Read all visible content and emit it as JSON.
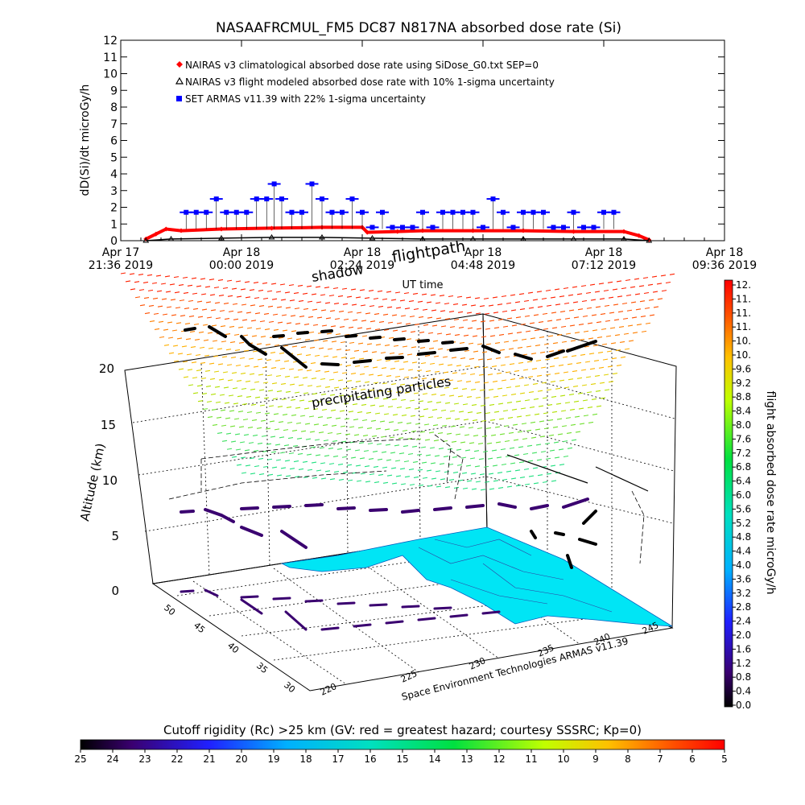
{
  "chart_data": [
    {
      "type": "scatter",
      "title": "NASAAFRCMUL_FM5 DC87 N817NA absorbed dose rate (Si)",
      "xlabel": "UT time",
      "ylabel": "dD(Si)/dt microGy/h",
      "ylim": [
        0,
        12
      ],
      "yticks": [
        "0",
        "1",
        "2",
        "3",
        "4",
        "5",
        "6",
        "7",
        "8",
        "9",
        "10",
        "11",
        "12"
      ],
      "xlim_hours_from_start": [
        0,
        12
      ],
      "xticks": [
        {
          "l1": "Apr 17",
          "l2": "21:36 2019"
        },
        {
          "l1": "Apr 18",
          "l2": "00:00 2019"
        },
        {
          "l1": "Apr 18",
          "l2": "02:24 2019"
        },
        {
          "l1": "Apr 18",
          "l2": "04:48 2019"
        },
        {
          "l1": "Apr 18",
          "l2": "07:12 2019"
        },
        {
          "l1": "Apr 18",
          "l2": "09:36 2019"
        }
      ],
      "legend_position": "top-left",
      "series": [
        {
          "name": "NAIRAS v3 climatological absorbed dose rate using SiDose_G0.txt SEP=0",
          "color": "#ff0000",
          "marker": "diamond",
          "x": [
            0.5,
            0.7,
            0.9,
            1.2,
            2.0,
            3.0,
            4.0,
            4.8,
            4.9,
            5.5,
            6.0,
            7.0,
            8.0,
            9.0,
            10.0,
            10.3,
            10.5
          ],
          "values": [
            0.1,
            0.4,
            0.7,
            0.6,
            0.7,
            0.75,
            0.8,
            0.8,
            0.5,
            0.55,
            0.6,
            0.6,
            0.6,
            0.55,
            0.55,
            0.3,
            0.05
          ]
        },
        {
          "name": "NAIRAS v3 flight modeled absorbed dose rate with 10% 1-sigma uncertainty",
          "color": "#000000",
          "marker": "triangle",
          "x": [
            0.5,
            1.0,
            2.0,
            3.0,
            4.0,
            5.0,
            6.0,
            7.0,
            8.0,
            9.0,
            10.0,
            10.5
          ],
          "values": [
            0.0,
            0.1,
            0.15,
            0.2,
            0.2,
            0.15,
            0.1,
            0.1,
            0.1,
            0.1,
            0.1,
            0.0
          ]
        },
        {
          "name": "SET ARMAS v11.39 with 22% 1-sigma uncertainty",
          "color": "#0000ff",
          "marker": "square",
          "x": [
            1.3,
            1.5,
            1.7,
            1.9,
            2.1,
            2.3,
            2.5,
            2.7,
            2.9,
            3.05,
            3.2,
            3.4,
            3.6,
            3.8,
            4.0,
            4.2,
            4.4,
            4.6,
            4.8,
            5.0,
            5.2,
            5.4,
            5.6,
            5.8,
            6.0,
            6.2,
            6.4,
            6.6,
            6.8,
            7.0,
            7.2,
            7.4,
            7.6,
            7.8,
            8.0,
            8.2,
            8.4,
            8.6,
            8.8,
            9.0,
            9.2,
            9.4,
            9.6,
            9.8
          ],
          "values": [
            1.7,
            1.7,
            1.7,
            2.5,
            1.7,
            1.7,
            1.7,
            2.5,
            2.5,
            3.4,
            2.5,
            1.7,
            1.7,
            3.4,
            2.5,
            1.7,
            1.7,
            2.5,
            1.7,
            0.8,
            1.7,
            0.8,
            0.8,
            0.8,
            1.7,
            0.8,
            1.7,
            1.7,
            1.7,
            1.7,
            0.8,
            2.5,
            1.7,
            0.8,
            1.7,
            1.7,
            1.7,
            0.8,
            0.8,
            1.7,
            0.8,
            0.8,
            1.7,
            1.7
          ]
        }
      ]
    },
    {
      "type": "scatter",
      "title": "",
      "zlabel": "Altitude (km)",
      "zticks": [
        "0",
        "5",
        "10",
        "15",
        "20"
      ],
      "lat_ticks": [
        "30",
        "35",
        "40",
        "45",
        "50"
      ],
      "lon_ticks": [
        "220",
        "225",
        "230",
        "235",
        "240",
        "245"
      ],
      "annotations": [
        "shadow",
        "flightpath",
        "precipitating particles"
      ],
      "credit": "Space Environment Technologies ARMAS v11.39"
    },
    {
      "type": "heatmap",
      "colorbar_label": "flight absorbed dose rate microGy/h",
      "ticks": [
        "12.",
        "11.",
        "11.",
        "11.",
        "10.",
        "10.",
        "9.6",
        "9.2",
        "8.8",
        "8.4",
        "8.0",
        "7.6",
        "7.2",
        "6.8",
        "6.4",
        "6.0",
        "5.6",
        "5.2",
        "4.8",
        "4.4",
        "4.0",
        "3.6",
        "3.2",
        "2.8",
        "2.4",
        "2.0",
        "1.6",
        "1.2",
        "0.8",
        "0.4",
        "0.0"
      ]
    },
    {
      "type": "heatmap",
      "colorbar_label": "Cutoff rigidity (Rc) >25 km (GV: red = greatest hazard; courtesy SSSRC; Kp=0)",
      "ticks": [
        "25",
        "24",
        "23",
        "22",
        "21",
        "20",
        "19",
        "18",
        "17",
        "16",
        "15",
        "14",
        "13",
        "12",
        "11",
        "10",
        "9",
        "8",
        "7",
        "6",
        "5"
      ]
    }
  ]
}
